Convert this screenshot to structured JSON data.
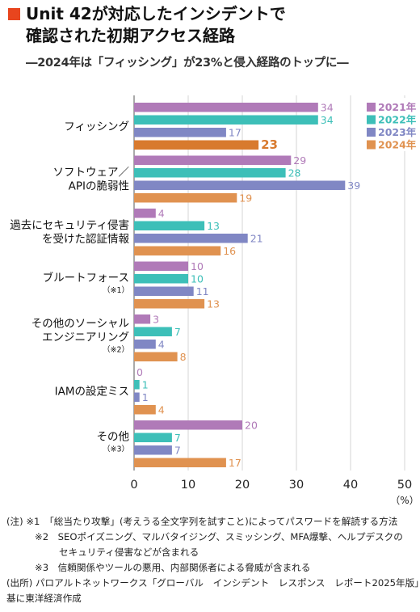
{
  "header": {
    "title_line1": "Unit 42が対応したインシデントで",
    "title_line2": "確認された初期アクセス経路",
    "subtitle": "―2024年は「フィッシング」が23%と侵入経路のトップに―"
  },
  "chart_data": {
    "type": "bar",
    "orientation": "horizontal",
    "categories": [
      {
        "label": [
          "フィッシング"
        ],
        "note": ""
      },
      {
        "label": [
          "ソフトウェア／",
          "APIの脆弱性"
        ],
        "note": ""
      },
      {
        "label": [
          "過去にセキュリティ侵害",
          "を受けた認証情報"
        ],
        "note": ""
      },
      {
        "label": [
          "ブルートフォース"
        ],
        "note": "（※1）"
      },
      {
        "label": [
          "その他のソーシャル",
          "エンジニアリング"
        ],
        "note": "（※2）"
      },
      {
        "label": [
          "IAMの設定ミス"
        ],
        "note": ""
      },
      {
        "label": [
          "その他"
        ],
        "note": "（※3）"
      }
    ],
    "series": [
      {
        "name": "2021年",
        "color": "#b07ab8",
        "values": [
          34,
          29,
          4,
          10,
          3,
          0,
          20
        ]
      },
      {
        "name": "2022年",
        "color": "#3dbfb8",
        "values": [
          34,
          28,
          13,
          10,
          7,
          1,
          7
        ]
      },
      {
        "name": "2023年",
        "color": "#8087c4",
        "values": [
          17,
          39,
          21,
          11,
          4,
          1,
          7
        ]
      },
      {
        "name": "2024年",
        "color": "#e09250",
        "values": [
          23,
          19,
          16,
          13,
          8,
          4,
          17
        ]
      }
    ],
    "xlim": [
      0,
      50
    ],
    "xticks": [
      "0",
      "10",
      "20",
      "30",
      "40",
      "50"
    ],
    "xunit": "（%）",
    "highlight": {
      "category": 0,
      "series": 3,
      "color": "#d87a2e"
    },
    "legend_position": "top-right"
  },
  "notes": {
    "line1": "(注) ※1　「総当たり攻撃」(考えうる全文字列を試すこと)によってパスワードを解読する方法",
    "line2": "※2　SEOポイズニング、マルバタイジング、スミッシング、MFA爆撃、ヘルプデスクの",
    "line3": "セキュリティ侵害などが含まれる",
    "line4": "※3　信頼関係やツールの悪用、内部関係者による脅威が含まれる",
    "line5": "(出所) パロアルトネットワークス「グローバル　インシデント　レスポンス　レポート2025年版」を",
    "line6": "基に東洋経済作成"
  }
}
